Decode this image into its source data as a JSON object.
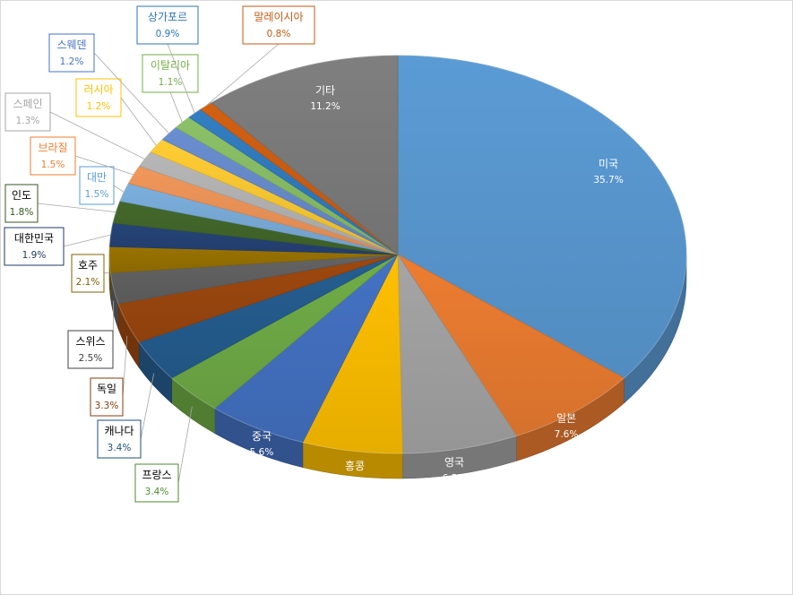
{
  "chart_data": {
    "type": "pie",
    "title": "",
    "slices": [
      {
        "label": "미국",
        "value": 35.7,
        "value_text": "35.7%",
        "color": "#5b9bd5",
        "label_color": "#ffffff"
      },
      {
        "label": "일본",
        "value": 7.6,
        "value_text": "7.6%",
        "color": "#ed7d31",
        "label_color": "#ffffff"
      },
      {
        "label": "영국",
        "value": 6.5,
        "value_text": "6.5%",
        "color": "#a5a5a5",
        "label_color": "#ffffff"
      },
      {
        "label": "홍콩",
        "value": 5.6,
        "value_text": "5.6%",
        "color": "#ffc000",
        "label_color": "#ffffff"
      },
      {
        "label": "중국",
        "value": 5.6,
        "value_text": "5.6%",
        "color": "#4472c4",
        "label_color": "#ffffff"
      },
      {
        "label": "프랑스",
        "value": 3.4,
        "value_text": "3.4%",
        "color": "#70ad47",
        "label_color": "#4f8a2e"
      },
      {
        "label": "캐나다",
        "value": 3.4,
        "value_text": "3.4%",
        "color": "#255e91",
        "label_color": "#1f4e79"
      },
      {
        "label": "독일",
        "value": 3.3,
        "value_text": "3.3%",
        "color": "#9e480e",
        "label_color": "#843c0c"
      },
      {
        "label": "스위스",
        "value": 2.5,
        "value_text": "2.5%",
        "color": "#636363",
        "label_color": "#404040"
      },
      {
        "label": "호주",
        "value": 2.1,
        "value_text": "2.1%",
        "color": "#997300",
        "label_color": "#7f6000"
      },
      {
        "label": "대한민국",
        "value": 1.9,
        "value_text": "1.9%",
        "color": "#264478",
        "label_color": "#1f3864"
      },
      {
        "label": "인도",
        "value": 1.8,
        "value_text": "1.8%",
        "color": "#43682b",
        "label_color": "#375623"
      },
      {
        "label": "대만",
        "value": 1.5,
        "value_text": "1.5%",
        "color": "#7cafdd",
        "label_color": "#5b9bd5"
      },
      {
        "label": "브라질",
        "value": 1.5,
        "value_text": "1.5%",
        "color": "#f1975a",
        "label_color": "#ed7d31"
      },
      {
        "label": "스페인",
        "value": 1.3,
        "value_text": "1.3%",
        "color": "#b7b7b7",
        "label_color": "#a5a5a5"
      },
      {
        "label": "러시아",
        "value": 1.2,
        "value_text": "1.2%",
        "color": "#ffcd33",
        "label_color": "#ffc000"
      },
      {
        "label": "스웨덴",
        "value": 1.2,
        "value_text": "1.2%",
        "color": "#698ed0",
        "label_color": "#4472c4"
      },
      {
        "label": "이탈리아",
        "value": 1.1,
        "value_text": "1.1%",
        "color": "#8cc168",
        "label_color": "#70ad47"
      },
      {
        "label": "상가포르",
        "value": 0.9,
        "value_text": "0.9%",
        "color": "#327dc2",
        "label_color": "#2e75b6"
      },
      {
        "label": "말레이시아",
        "value": 0.8,
        "value_text": "0.8%",
        "color": "#d26012",
        "label_color": "#c55a11"
      },
      {
        "label": "기타",
        "value": 11.2,
        "value_text": "11.2%",
        "color": "#7f7f7f",
        "label_color": "#ffffff"
      }
    ],
    "legend": "none",
    "style": "3d"
  }
}
